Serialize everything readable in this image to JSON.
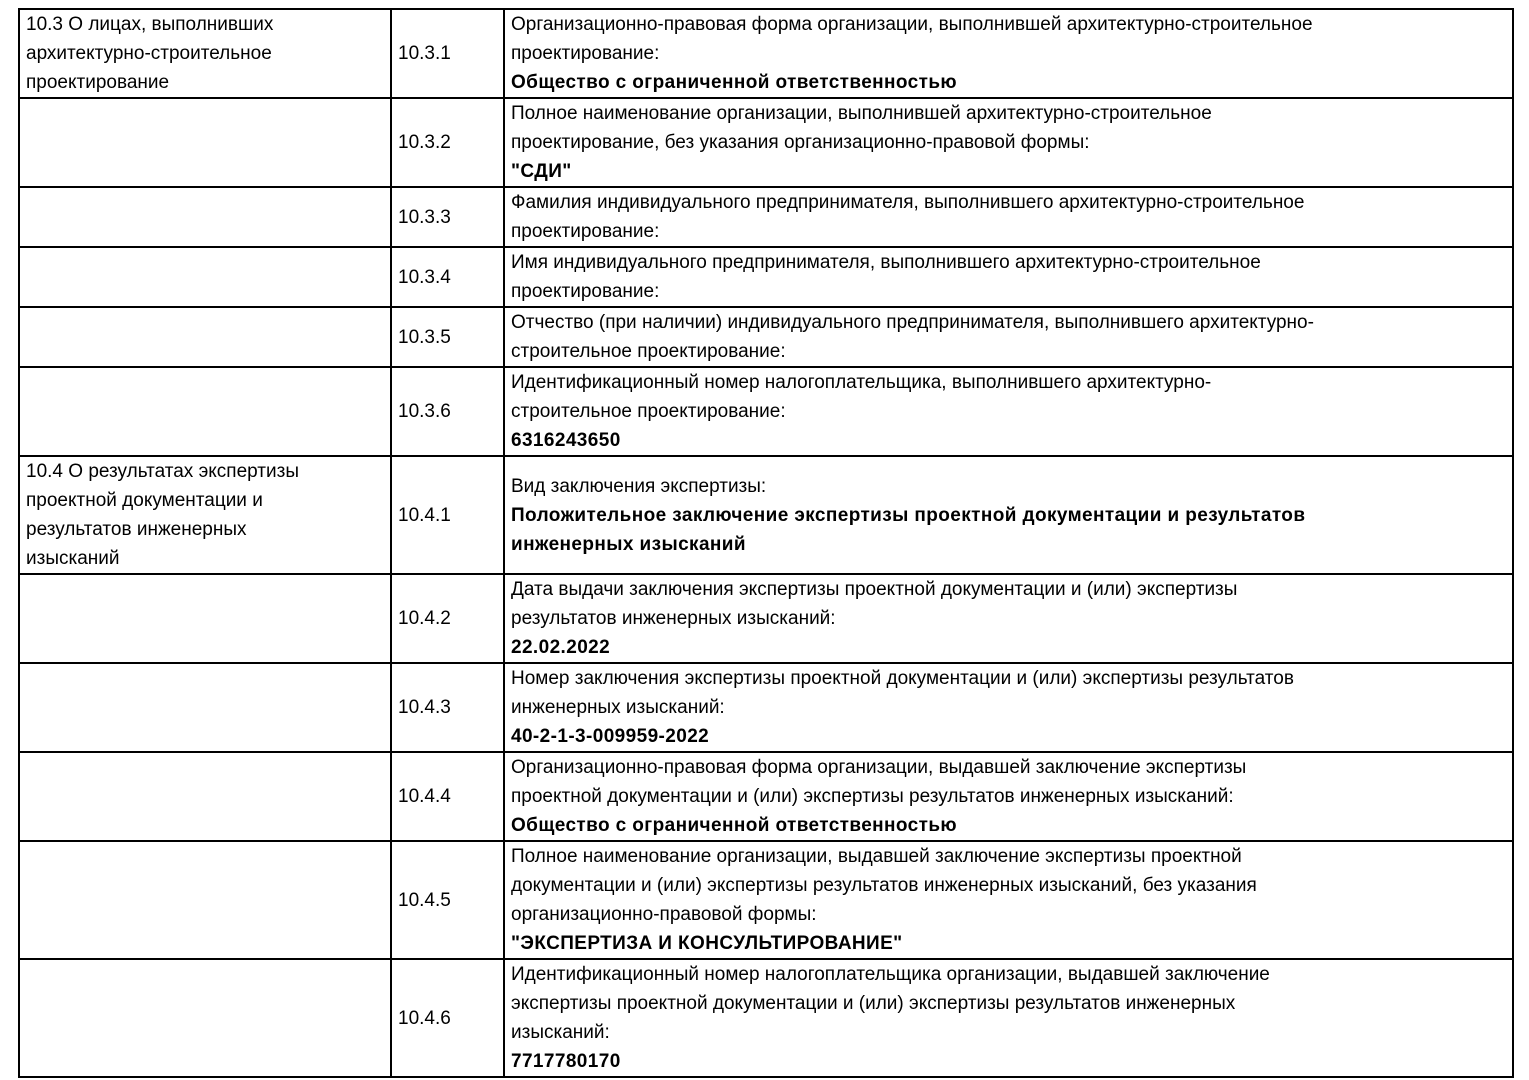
{
  "table": {
    "sections": [
      {
        "title": "10.3 О лицах, выполнивших\nархитектурно-строительное\nпроектирование",
        "rows": [
          {
            "num": "10.3.1",
            "label": "Организационно-правовая форма организации, выполнившей архитектурно-строительное\nпроектирование:",
            "value": "Общество с ограниченной ответственностью"
          },
          {
            "num": "10.3.2",
            "label": "Полное наименование организации, выполнившей архитектурно-строительное\nпроектирование, без указания организационно-правовой формы:",
            "value": "\"СДИ\""
          },
          {
            "num": "10.3.3",
            "label": "Фамилия индивидуального предпринимателя, выполнившего архитектурно-строительное\nпроектирование:",
            "value": ""
          },
          {
            "num": "10.3.4",
            "label": "Имя индивидуального предпринимателя, выполнившего архитектурно-строительное\nпроектирование:",
            "value": ""
          },
          {
            "num": "10.3.5",
            "label": "Отчество (при наличии) индивидуального предпринимателя, выполнившего архитектурно-\nстроительное проектирование:",
            "value": ""
          },
          {
            "num": "10.3.6",
            "label": "Идентификационный номер налогоплательщика, выполнившего архитектурно-\nстроительное проектирование:",
            "value": "6316243650"
          }
        ]
      },
      {
        "title": "10.4 О результатах экспертизы\nпроектной документации и\nрезультатов инженерных\nизысканий",
        "rows": [
          {
            "num": "10.4.1",
            "label": "Вид заключения экспертизы:",
            "value": "Положительное заключение экспертизы проектной документации и результатов\nинженерных изысканий"
          },
          {
            "num": "10.4.2",
            "label": "Дата выдачи заключения экспертизы проектной документации и (или) экспертизы\nрезультатов инженерных изысканий:",
            "value": "22.02.2022"
          },
          {
            "num": "10.4.3",
            "label": "Номер заключения экспертизы проектной документации и (или) экспертизы результатов\nинженерных изысканий:",
            "value": "40-2-1-3-009959-2022"
          },
          {
            "num": "10.4.4",
            "label": "Организационно-правовая форма организации, выдавшей заключение экспертизы\nпроектной документации и (или) экспертизы результатов инженерных изысканий:",
            "value": "Общество с ограниченной ответственностью"
          },
          {
            "num": "10.4.5",
            "label": "Полное наименование организации, выдавшей заключение экспертизы проектной\nдокументации и (или) экспертизы результатов инженерных изысканий, без указания\nорганизационно-правовой формы:",
            "value": "\"ЭКСПЕРТИЗА И КОНСУЛЬТИРОВАНИЕ\""
          },
          {
            "num": "10.4.6",
            "label": "Идентификационный номер налогоплательщика организации, выдавшей заключение\nэкспертизы проектной документации и (или) экспертизы результатов инженерных\nизысканий:",
            "value": "7717780170"
          }
        ]
      }
    ]
  }
}
